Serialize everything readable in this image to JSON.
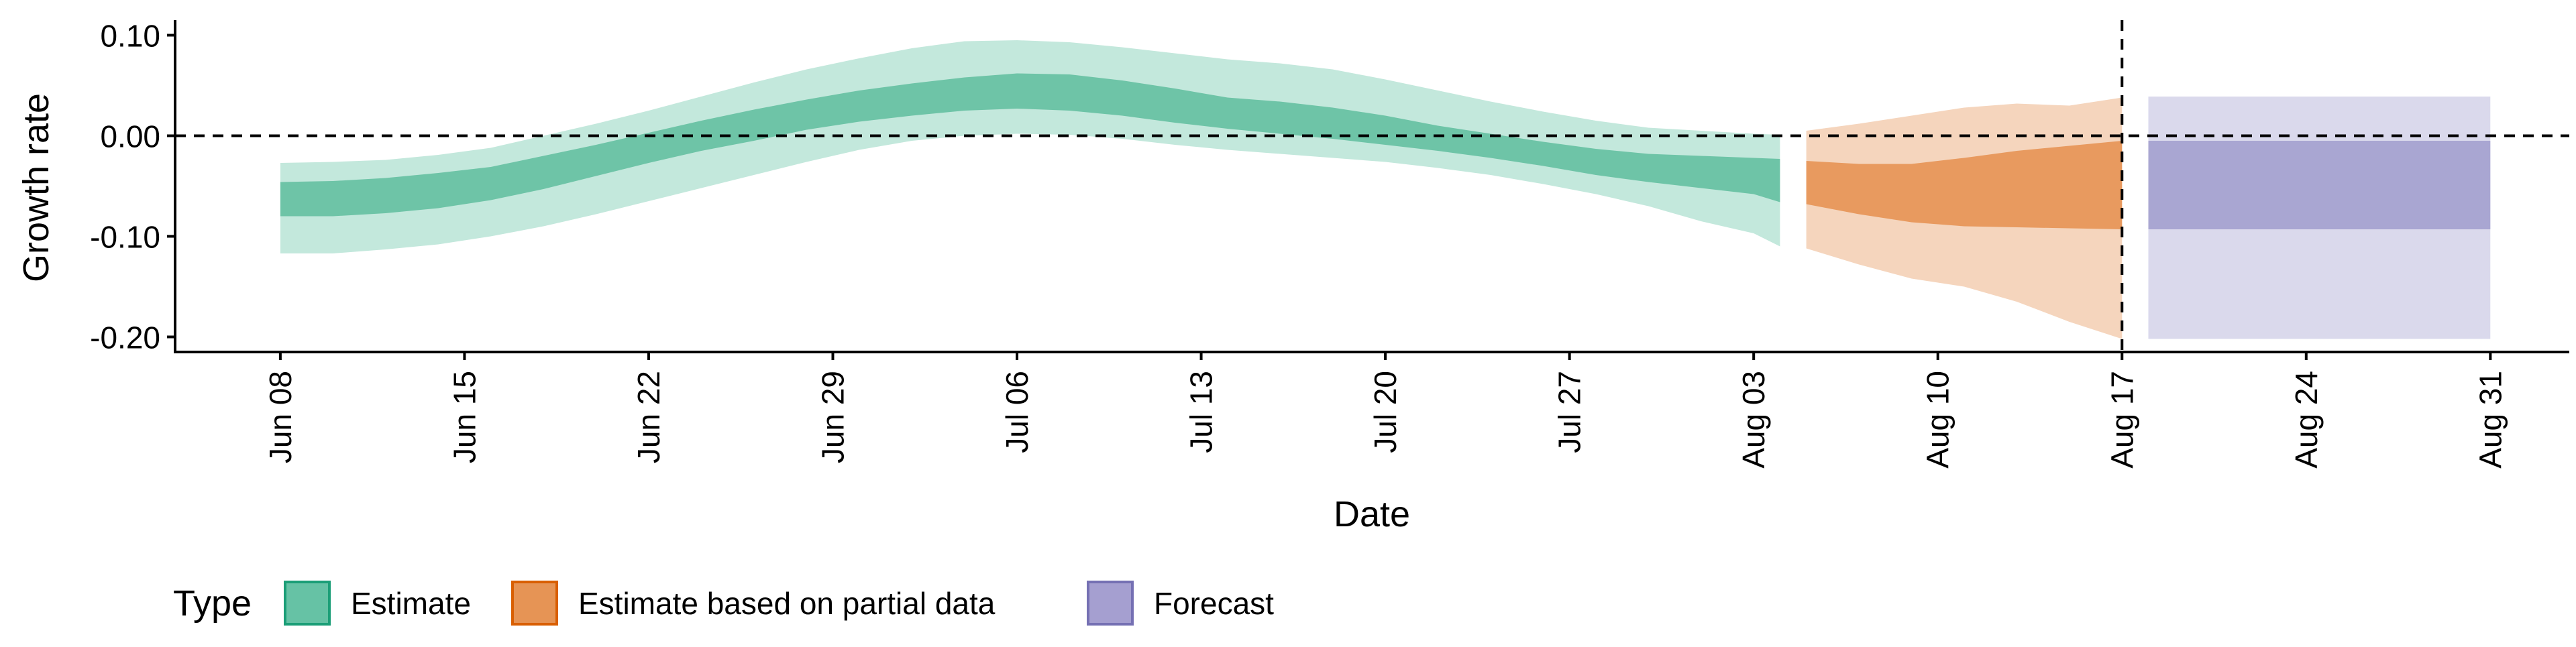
{
  "chart_data": {
    "type": "area",
    "xlabel": "Date",
    "ylabel": "Growth rate",
    "ylim": [
      -0.215,
      0.115
    ],
    "y_ticks": [
      {
        "value": 0.1,
        "label": "0.10"
      },
      {
        "value": 0.0,
        "label": "0.00"
      },
      {
        "value": -0.1,
        "label": "-0.10"
      },
      {
        "value": -0.2,
        "label": "-0.20"
      }
    ],
    "x_ticks": [
      {
        "date": "2020-06-08",
        "label": "Jun 08"
      },
      {
        "date": "2020-06-15",
        "label": "Jun 15"
      },
      {
        "date": "2020-06-22",
        "label": "Jun 22"
      },
      {
        "date": "2020-06-29",
        "label": "Jun 29"
      },
      {
        "date": "2020-07-06",
        "label": "Jul 06"
      },
      {
        "date": "2020-07-13",
        "label": "Jul 13"
      },
      {
        "date": "2020-07-20",
        "label": "Jul 20"
      },
      {
        "date": "2020-07-27",
        "label": "Jul 27"
      },
      {
        "date": "2020-08-03",
        "label": "Aug 03"
      },
      {
        "date": "2020-08-10",
        "label": "Aug 10"
      },
      {
        "date": "2020-08-17",
        "label": "Aug 17"
      },
      {
        "date": "2020-08-24",
        "label": "Aug 24"
      },
      {
        "date": "2020-08-31",
        "label": "Aug 31"
      }
    ],
    "xlim": [
      "2020-06-04",
      "2020-09-03"
    ],
    "vline_date": "2020-08-17",
    "hline_value": 0,
    "legend": {
      "title": "Type",
      "placement": "bottom",
      "entries": [
        {
          "label": "Estimate",
          "fill": "#66c2a5",
          "stroke": "#1b9e77"
        },
        {
          "label": "Estimate based on partial data",
          "fill": "#e69455",
          "stroke": "#d95f02"
        },
        {
          "label": "Forecast",
          "fill": "#a59fd0",
          "stroke": "#7570b3"
        }
      ]
    },
    "series": [
      {
        "name": "Estimate",
        "inner_color": "#6ec4a7",
        "outer_color": "#c3e8dc",
        "points": [
          {
            "date": "2020-06-08",
            "lo90": -0.117,
            "lo50": -0.08,
            "hi50": -0.046,
            "hi90": -0.027
          },
          {
            "date": "2020-06-10",
            "lo90": -0.117,
            "lo50": -0.08,
            "hi50": -0.045,
            "hi90": -0.026
          },
          {
            "date": "2020-06-12",
            "lo90": -0.113,
            "lo50": -0.077,
            "hi50": -0.042,
            "hi90": -0.024
          },
          {
            "date": "2020-06-14",
            "lo90": -0.108,
            "lo50": -0.072,
            "hi50": -0.037,
            "hi90": -0.019
          },
          {
            "date": "2020-06-16",
            "lo90": -0.1,
            "lo50": -0.064,
            "hi50": -0.031,
            "hi90": -0.012
          },
          {
            "date": "2020-06-18",
            "lo90": -0.09,
            "lo50": -0.053,
            "hi50": -0.02,
            "hi90": 0.0
          },
          {
            "date": "2020-06-20",
            "lo90": -0.078,
            "lo50": -0.04,
            "hi50": -0.009,
            "hi90": 0.012
          },
          {
            "date": "2020-06-22",
            "lo90": -0.065,
            "lo50": -0.027,
            "hi50": 0.003,
            "hi90": 0.025
          },
          {
            "date": "2020-06-24",
            "lo90": -0.052,
            "lo50": -0.015,
            "hi50": 0.015,
            "hi90": 0.039
          },
          {
            "date": "2020-06-26",
            "lo90": -0.039,
            "lo50": -0.005,
            "hi50": 0.026,
            "hi90": 0.053
          },
          {
            "date": "2020-06-28",
            "lo90": -0.026,
            "lo50": 0.006,
            "hi50": 0.036,
            "hi90": 0.066
          },
          {
            "date": "2020-06-30",
            "lo90": -0.014,
            "lo50": 0.014,
            "hi50": 0.045,
            "hi90": 0.077
          },
          {
            "date": "2020-07-02",
            "lo90": -0.005,
            "lo50": 0.02,
            "hi50": 0.052,
            "hi90": 0.087
          },
          {
            "date": "2020-07-04",
            "lo90": 0.0,
            "lo50": 0.025,
            "hi50": 0.058,
            "hi90": 0.094
          },
          {
            "date": "2020-07-06",
            "lo90": 0.002,
            "lo50": 0.027,
            "hi50": 0.062,
            "hi90": 0.095
          },
          {
            "date": "2020-07-08",
            "lo90": 0.001,
            "lo50": 0.025,
            "hi50": 0.061,
            "hi90": 0.093
          },
          {
            "date": "2020-07-10",
            "lo90": -0.003,
            "lo50": 0.02,
            "hi50": 0.055,
            "hi90": 0.088
          },
          {
            "date": "2020-07-12",
            "lo90": -0.009,
            "lo50": 0.013,
            "hi50": 0.047,
            "hi90": 0.082
          },
          {
            "date": "2020-07-14",
            "lo90": -0.014,
            "lo50": 0.007,
            "hi50": 0.038,
            "hi90": 0.076
          },
          {
            "date": "2020-07-16",
            "lo90": -0.018,
            "lo50": 0.002,
            "hi50": 0.034,
            "hi90": 0.072
          },
          {
            "date": "2020-07-18",
            "lo90": -0.022,
            "lo50": -0.003,
            "hi50": 0.028,
            "hi90": 0.066
          },
          {
            "date": "2020-07-20",
            "lo90": -0.026,
            "lo50": -0.009,
            "hi50": 0.02,
            "hi90": 0.056
          },
          {
            "date": "2020-07-22",
            "lo90": -0.032,
            "lo50": -0.015,
            "hi50": 0.01,
            "hi90": 0.045
          },
          {
            "date": "2020-07-24",
            "lo90": -0.039,
            "lo50": -0.022,
            "hi50": 0.002,
            "hi90": 0.034
          },
          {
            "date": "2020-07-26",
            "lo90": -0.048,
            "lo50": -0.03,
            "hi50": -0.006,
            "hi90": 0.024
          },
          {
            "date": "2020-07-28",
            "lo90": -0.058,
            "lo50": -0.039,
            "hi50": -0.013,
            "hi90": 0.015
          },
          {
            "date": "2020-07-30",
            "lo90": -0.07,
            "lo50": -0.046,
            "hi50": -0.018,
            "hi90": 0.008
          },
          {
            "date": "2020-08-01",
            "lo90": -0.085,
            "lo50": -0.052,
            "hi50": -0.02,
            "hi90": 0.005
          },
          {
            "date": "2020-08-03",
            "lo90": -0.097,
            "lo50": -0.058,
            "hi50": -0.022,
            "hi90": 0.002
          },
          {
            "date": "2020-08-04",
            "lo90": -0.11,
            "lo50": -0.066,
            "hi50": -0.023,
            "hi90": 0.001
          }
        ]
      },
      {
        "name": "Estimate based on partial data",
        "inner_color": "#e89a5f",
        "outer_color": "#f5d5bd",
        "points": [
          {
            "date": "2020-08-05",
            "lo90": -0.112,
            "lo50": -0.068,
            "hi50": -0.025,
            "hi90": 0.005
          },
          {
            "date": "2020-08-07",
            "lo90": -0.128,
            "lo50": -0.078,
            "hi50": -0.028,
            "hi90": 0.012
          },
          {
            "date": "2020-08-09",
            "lo90": -0.142,
            "lo50": -0.086,
            "hi50": -0.028,
            "hi90": 0.02
          },
          {
            "date": "2020-08-11",
            "lo90": -0.15,
            "lo50": -0.09,
            "hi50": -0.022,
            "hi90": 0.028
          },
          {
            "date": "2020-08-13",
            "lo90": -0.165,
            "lo50": -0.091,
            "hi50": -0.015,
            "hi90": 0.032
          },
          {
            "date": "2020-08-15",
            "lo90": -0.185,
            "lo50": -0.092,
            "hi50": -0.01,
            "hi90": 0.03
          },
          {
            "date": "2020-08-17",
            "lo90": -0.202,
            "lo50": -0.093,
            "hi50": -0.005,
            "hi90": 0.038
          }
        ]
      },
      {
        "name": "Forecast",
        "inner_color": "#a9a6d2",
        "outer_color": "#dad9ec",
        "points": [
          {
            "date": "2020-08-18",
            "lo90": -0.202,
            "lo50": -0.093,
            "hi50": -0.005,
            "hi90": 0.039
          },
          {
            "date": "2020-08-31",
            "lo90": -0.202,
            "lo50": -0.093,
            "hi50": -0.005,
            "hi90": 0.039
          }
        ]
      }
    ]
  }
}
